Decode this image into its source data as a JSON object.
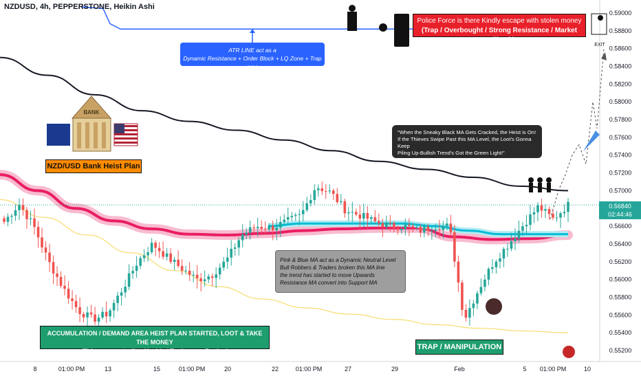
{
  "header": {
    "symbol_line": "NZDUSD, 4h, PEPPERSTONE, Heikin Ashi"
  },
  "annotations": {
    "police": {
      "line1": "Police Force is there Kindly escape with stolen money",
      "line2": "(Trap / Overbought / Strong Resistance / Market Pullback)"
    },
    "exit_label": "EXIT",
    "atr": {
      "line1": "ATR LINE act as a",
      "line2": "Dynamic Resistance + Order Block + LQ Zone + Trap area"
    },
    "bank_plan": "NZD/USD Bank Heist Plan",
    "bank_sign": "BANK",
    "sneaky": {
      "line1": "\"When the Sneaky Black MA Gets Cracked, the Heist is On!",
      "line2": "If the Thieves Swipe Past this MA Level, the Loot's Gonna Keep",
      "line3": "Piling Up-Bullish Trend's Got the Green Light!\""
    },
    "pink_blue": {
      "line1": "Pink & Blue MA act as a Dynamic Neutral Level",
      "line2": "Bull Robbers & Traders broken this MA line",
      "line3": "the trend has started to move Upwards",
      "line4": "Resistance MA convert into Support MA"
    },
    "accum": {
      "line1": "ACCUMULATION / DEMAND AREA HEIST PLAN STARTED, LOOT & TAKE THE MONEY",
      "line2": "(Thieves are stealing Upside / Traders are Buying)"
    },
    "trap": "TRAP / MANIPULATION"
  },
  "price_tag": {
    "price": "0.56840",
    "timer": "02:44:46"
  },
  "colors": {
    "bull": "#26a69a",
    "bear": "#ef5350",
    "atr_line": "#2962ff",
    "black_ma": "#131722",
    "pink_ma": "#e91e63",
    "blue_ma": "#00bcd4",
    "yellow_ma": "#f7dc6f",
    "police_bg": "#e8202a",
    "atr_box_bg": "#2962ff",
    "sneaky_bg": "#2a2a2a",
    "pink_blue_bg": "#9e9e9e",
    "accum_bg": "#1e9e6e",
    "trap_bg": "#1e9e6e",
    "bank_bg": "#ff8c00"
  },
  "chart_data": {
    "type": "candlestick",
    "ylim": [
      0.5515,
      0.5915
    ],
    "y_ticks": [
      "0.59000",
      "0.58800",
      "0.58600",
      "0.58400",
      "0.58200",
      "0.58000",
      "0.57800",
      "0.57600",
      "0.57400",
      "0.57200",
      "0.57000",
      "0.56800",
      "0.56600",
      "0.56400",
      "0.56200",
      "0.56000",
      "0.55800",
      "0.55600",
      "0.55400",
      "0.55200"
    ],
    "x_ticks": [
      "8",
      "01:00 PM",
      "13",
      "15",
      "01:00 PM",
      "20",
      "22",
      "01:00 PM",
      "27",
      "29",
      "Feb",
      "5",
      "01:00 PM",
      "10"
    ],
    "ohlc_anchor_prices": [
      0.5665,
      0.5685,
      0.566,
      0.562,
      0.559,
      0.5565,
      0.5555,
      0.5562,
      0.559,
      0.562,
      0.564,
      0.5625,
      0.5612,
      0.56,
      0.5605,
      0.5622,
      0.565,
      0.566,
      0.5658,
      0.5665,
      0.5672,
      0.5705,
      0.5698,
      0.5678,
      0.5672,
      0.5665,
      0.566,
      0.566,
      0.5655,
      0.566,
      0.566,
      0.5555,
      0.559,
      0.562,
      0.564,
      0.5662,
      0.5682,
      0.5668,
      0.5684
    ],
    "atr_line": [
      0.5907,
      0.5905,
      0.5888,
      0.5882,
      0.5882,
      0.5882,
      0.5882,
      0.5882
    ],
    "black_ma": [
      0.585,
      0.583,
      0.5808,
      0.579,
      0.5778,
      0.5768,
      0.5757,
      0.5745,
      0.5733,
      0.5724,
      0.5715,
      0.5705,
      0.57
    ],
    "pink_ma": [
      0.5718,
      0.57,
      0.568,
      0.5666,
      0.5657,
      0.5651,
      0.565,
      0.5652,
      0.5655,
      0.5657,
      0.5658,
      0.5658,
      0.5648,
      0.5645,
      0.5646,
      0.565
    ],
    "blue_ma": [
      0.566,
      0.5663,
      0.5663,
      0.5663,
      0.5663,
      0.566,
      0.5655,
      0.5651,
      0.5651,
      0.5651
    ],
    "yellow_ma": [
      0.569,
      0.567,
      0.565,
      0.563,
      0.561,
      0.5592,
      0.5578,
      0.5568,
      0.5561,
      0.5555,
      0.5549,
      0.5545,
      0.5542,
      0.554
    ],
    "projection": [
      0.5668,
      0.57,
      0.5718,
      0.574,
      0.5752,
      0.573,
      0.58,
      0.577,
      0.586
    ],
    "last_price": 0.5684
  }
}
